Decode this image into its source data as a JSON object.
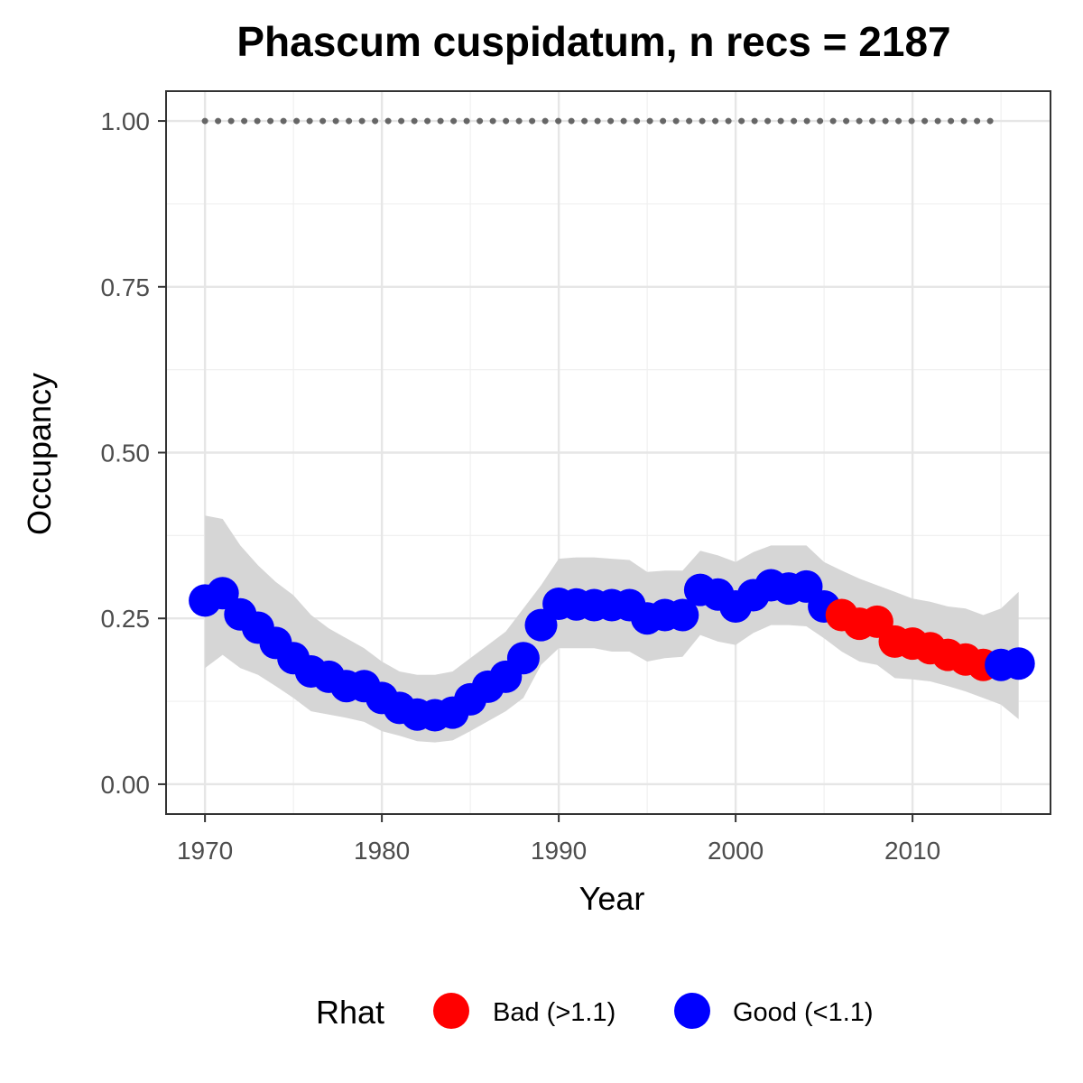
{
  "chart_data": {
    "type": "line",
    "title": "Phascum cuspidatum, n recs = 2187",
    "xlabel": "Year",
    "ylabel": "Occupancy",
    "xlim": [
      1967.8,
      2017.8
    ],
    "ylim": [
      -0.045,
      1.045
    ],
    "x_ticks": [
      1970,
      1980,
      1990,
      2000,
      2010
    ],
    "x_tick_labels": [
      "1970",
      "1980",
      "1990",
      "2000",
      "2010"
    ],
    "y_ticks": [
      0,
      0.25,
      0.5,
      0.75,
      1
    ],
    "y_tick_labels": [
      "0.00",
      "0.25",
      "0.50",
      "0.75",
      "1.00"
    ],
    "grid": true,
    "legend": {
      "title": "Rhat",
      "position": "bottom",
      "entries": [
        {
          "label": "Bad (>1.1)",
          "color": "#ff0000"
        },
        {
          "label": "Good (<1.1)",
          "color": "#0000ff"
        }
      ]
    },
    "colors": {
      "bad": "#ff0000",
      "good": "#0000ff",
      "ribbon": "#d6d6d6",
      "reference": "#666666"
    },
    "reference_line": {
      "y": 1.0,
      "x_start": 1970,
      "x_end": 2015,
      "style": "dotted"
    },
    "series": [
      {
        "x": [
          1970,
          1971,
          1972,
          1973,
          1974,
          1975,
          1976,
          1977,
          1978,
          1979,
          1980,
          1981,
          1982,
          1983,
          1984,
          1985,
          1986,
          1987,
          1988,
          1989,
          1990,
          1991,
          1992,
          1993,
          1994,
          1995,
          1996,
          1997,
          1998,
          1999,
          2000,
          2001,
          2002,
          2003,
          2004,
          2005,
          2006,
          2007,
          2008,
          2009,
          2010,
          2011,
          2012,
          2013,
          2014,
          2015,
          2016
        ],
        "y": [
          0.277,
          0.288,
          0.256,
          0.236,
          0.213,
          0.19,
          0.17,
          0.162,
          0.148,
          0.148,
          0.13,
          0.115,
          0.105,
          0.104,
          0.108,
          0.128,
          0.147,
          0.162,
          0.19,
          0.24,
          0.272,
          0.271,
          0.27,
          0.27,
          0.27,
          0.25,
          0.255,
          0.255,
          0.293,
          0.286,
          0.268,
          0.285,
          0.3,
          0.295,
          0.298,
          0.268,
          0.255,
          0.242,
          0.245,
          0.215,
          0.212,
          0.205,
          0.195,
          0.188,
          0.18,
          0.18,
          0.182
        ],
        "lower": [
          0.175,
          0.195,
          0.175,
          0.165,
          0.148,
          0.13,
          0.11,
          0.105,
          0.1,
          0.094,
          0.08,
          0.073,
          0.065,
          0.063,
          0.066,
          0.08,
          0.095,
          0.11,
          0.13,
          0.18,
          0.205,
          0.205,
          0.205,
          0.2,
          0.2,
          0.185,
          0.19,
          0.192,
          0.225,
          0.215,
          0.21,
          0.228,
          0.24,
          0.24,
          0.238,
          0.22,
          0.2,
          0.185,
          0.18,
          0.16,
          0.158,
          0.155,
          0.148,
          0.14,
          0.13,
          0.12,
          0.098
        ],
        "upper": [
          0.405,
          0.4,
          0.36,
          0.33,
          0.305,
          0.285,
          0.255,
          0.235,
          0.22,
          0.205,
          0.185,
          0.17,
          0.165,
          0.165,
          0.17,
          0.19,
          0.21,
          0.23,
          0.265,
          0.3,
          0.34,
          0.342,
          0.342,
          0.34,
          0.338,
          0.32,
          0.322,
          0.322,
          0.352,
          0.345,
          0.335,
          0.35,
          0.36,
          0.36,
          0.36,
          0.335,
          0.322,
          0.31,
          0.3,
          0.29,
          0.28,
          0.275,
          0.268,
          0.265,
          0.255,
          0.265,
          0.29
        ],
        "rhat": [
          "Good",
          "Good",
          "Good",
          "Good",
          "Good",
          "Good",
          "Good",
          "Good",
          "Good",
          "Good",
          "Good",
          "Good",
          "Good",
          "Good",
          "Good",
          "Good",
          "Good",
          "Good",
          "Good",
          "Good",
          "Good",
          "Good",
          "Good",
          "Good",
          "Good",
          "Good",
          "Good",
          "Good",
          "Good",
          "Good",
          "Good",
          "Good",
          "Good",
          "Good",
          "Good",
          "Good",
          "Bad",
          "Bad",
          "Bad",
          "Bad",
          "Bad",
          "Bad",
          "Bad",
          "Bad",
          "Bad",
          "Good",
          "Good"
        ]
      }
    ]
  }
}
